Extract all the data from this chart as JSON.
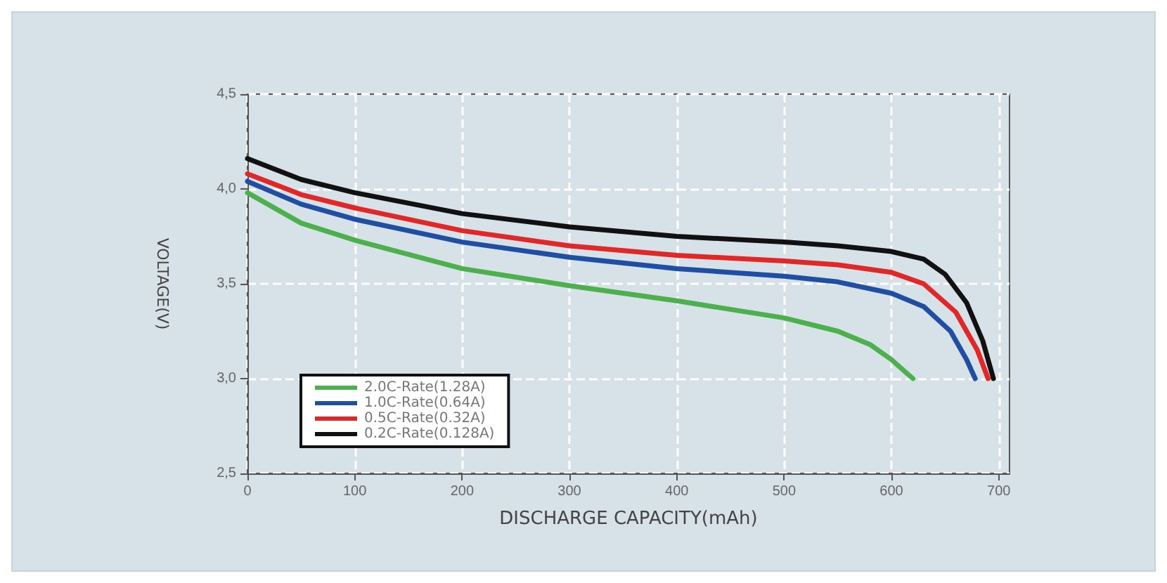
{
  "chart_data": {
    "type": "line",
    "xlabel": "DISCHARGE CAPACITY(mAh)",
    "ylabel": "VOLTAGE(V)",
    "xlim": [
      0,
      710
    ],
    "xticks": [
      0,
      100,
      200,
      300,
      400,
      500,
      600,
      700
    ],
    "ylim": [
      2.5,
      4.5
    ],
    "yticks": [
      {
        "value": 2.5,
        "label": "2,5"
      },
      {
        "value": 3.0,
        "label": "3,0"
      },
      {
        "value": 3.5,
        "label": "3,5"
      },
      {
        "value": 4.0,
        "label": "4,0"
      },
      {
        "value": 4.5,
        "label": "4,5"
      }
    ],
    "grid": true,
    "legend": "bottom left",
    "marker": "none",
    "line_style": "solid",
    "series": [
      {
        "name": "2.0C-Rate(1.28A)",
        "color": "#4cb04c",
        "x": [
          0,
          50,
          100,
          200,
          300,
          400,
          500,
          550,
          580,
          600,
          620
        ],
        "values": [
          3.98,
          3.82,
          3.73,
          3.58,
          3.49,
          3.41,
          3.32,
          3.25,
          3.18,
          3.1,
          3.0
        ]
      },
      {
        "name": "1.0C-Rate(0.64A)",
        "color": "#1f4ea3",
        "x": [
          0,
          50,
          100,
          200,
          300,
          400,
          500,
          550,
          600,
          630,
          655,
          670,
          678
        ],
        "values": [
          4.04,
          3.92,
          3.84,
          3.72,
          3.64,
          3.58,
          3.54,
          3.51,
          3.45,
          3.38,
          3.25,
          3.1,
          3.0
        ]
      },
      {
        "name": "0.5C-Rate(0.32A)",
        "color": "#e02828",
        "x": [
          0,
          50,
          100,
          200,
          300,
          400,
          500,
          550,
          600,
          630,
          660,
          680,
          690
        ],
        "values": [
          4.08,
          3.97,
          3.9,
          3.78,
          3.7,
          3.65,
          3.62,
          3.6,
          3.56,
          3.5,
          3.35,
          3.15,
          3.0
        ]
      },
      {
        "name": "0.2C-Rate(0.128A)",
        "color": "#111111",
        "x": [
          0,
          50,
          100,
          200,
          300,
          400,
          500,
          550,
          600,
          630,
          650,
          670,
          685,
          695
        ],
        "values": [
          4.16,
          4.05,
          3.98,
          3.87,
          3.8,
          3.75,
          3.72,
          3.7,
          3.67,
          3.63,
          3.55,
          3.4,
          3.2,
          3.0
        ]
      }
    ]
  }
}
